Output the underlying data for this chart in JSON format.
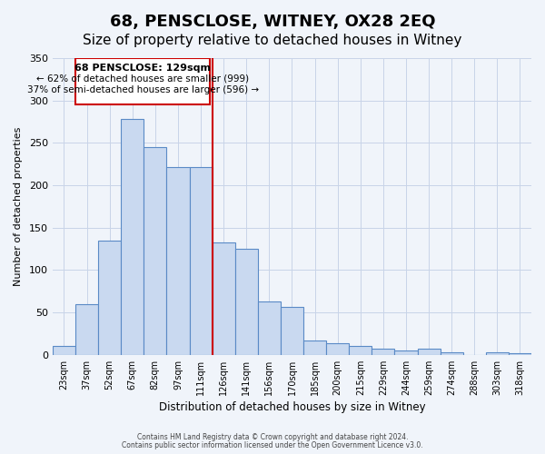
{
  "title": "68, PENSCLOSE, WITNEY, OX28 2EQ",
  "subtitle": "Size of property relative to detached houses in Witney",
  "xlabel": "Distribution of detached houses by size in Witney",
  "ylabel": "Number of detached properties",
  "bar_labels": [
    "23sqm",
    "37sqm",
    "52sqm",
    "67sqm",
    "82sqm",
    "97sqm",
    "111sqm",
    "126sqm",
    "141sqm",
    "156sqm",
    "170sqm",
    "185sqm",
    "200sqm",
    "215sqm",
    "229sqm",
    "244sqm",
    "259sqm",
    "274sqm",
    "288sqm",
    "303sqm",
    "318sqm"
  ],
  "bar_values": [
    10,
    60,
    135,
    278,
    245,
    222,
    222,
    133,
    125,
    63,
    57,
    17,
    14,
    10,
    7,
    5,
    7,
    3,
    0,
    3,
    2
  ],
  "bar_color": "#c9d9f0",
  "bar_edge_color": "#5a8ac6",
  "vline_color": "#cc0000",
  "annotation_title": "68 PENSCLOSE: 129sqm",
  "annotation_line1": "← 62% of detached houses are smaller (999)",
  "annotation_line2": "37% of semi-detached houses are larger (596) →",
  "annotation_box_color": "#cc0000",
  "ylim": [
    0,
    350
  ],
  "yticks": [
    0,
    50,
    100,
    150,
    200,
    250,
    300,
    350
  ],
  "footer1": "Contains HM Land Registry data © Crown copyright and database right 2024.",
  "footer2": "Contains public sector information licensed under the Open Government Licence v3.0.",
  "bg_color": "#f0f4fa",
  "grid_color": "#c8d4e8",
  "title_fontsize": 13,
  "subtitle_fontsize": 11
}
